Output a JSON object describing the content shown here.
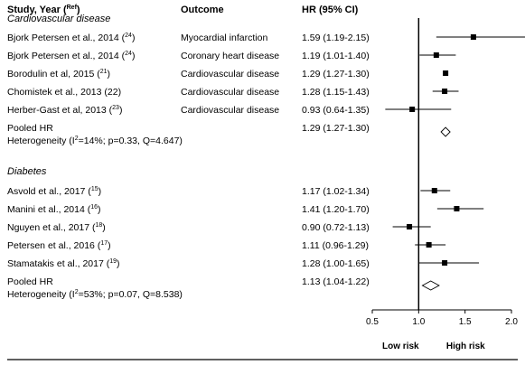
{
  "header": {
    "study_label": "Study, Year (",
    "study_sup": "Ref",
    "study_close": ")",
    "outcome": "Outcome",
    "hr": "HR (95% CI)"
  },
  "sections": [
    {
      "title": "Cardiovascular disease",
      "studies": [
        {
          "study": "Bjork Petersen et al., 2014 (",
          "sup": "24",
          "close": ")",
          "outcome": "Myocardial infarction",
          "hr_text": "1.59 (1.19-2.15)"
        },
        {
          "study": "Bjork Petersen et al., 2014 (",
          "sup": "24",
          "close": ")",
          "outcome": "Coronary heart disease",
          "hr_text": "1.19 (1.01-1.40)"
        },
        {
          "study": "Borodulin et al, 2015 (",
          "sup": "21",
          "close": ")",
          "outcome": "Cardiovascular disease",
          "hr_text": "1.29 (1.27-1.30)"
        },
        {
          "study": "Chomistek et al., 2013 (22)",
          "sup": "",
          "close": "",
          "outcome": "Cardiovascular disease",
          "hr_text": "1.28 (1.15-1.43)"
        },
        {
          "study": "Herber-Gast et al, 2013 (",
          "sup": "23",
          "close": ")",
          "outcome": "Cardiovascular disease",
          "hr_text": "0.93 (0.64-1.35)"
        }
      ],
      "pooled": {
        "label": "Pooled HR",
        "hr_text": "1.29 (1.27-1.30)",
        "heterogeneity_pre": "Heterogeneity (I",
        "heterogeneity_sup": "2",
        "heterogeneity_post": "=14%; p=0.33, Q=4.647)"
      }
    },
    {
      "title": "Diabetes",
      "studies": [
        {
          "study": "Asvold et al., 2017 (",
          "sup": "15",
          "close": ")",
          "outcome": "",
          "hr_text": "1.17 (1.02-1.34)"
        },
        {
          "study": "Manini et al., 2014 (",
          "sup": "16",
          "close": ")",
          "outcome": "",
          "hr_text": "1.41 (1.20-1.70)"
        },
        {
          "study": "Nguyen et al., 2017 (",
          "sup": "18",
          "close": ")",
          "outcome": "",
          "hr_text": "0.90 (0.72-1.13)"
        },
        {
          "study": "Petersen et al., 2016 (",
          "sup": "17",
          "close": ")",
          "outcome": "",
          "hr_text": "1.11 (0.96-1.29)"
        },
        {
          "study": "Stamatakis et al., 2017 (",
          "sup": "19",
          "close": ")",
          "outcome": "",
          "hr_text": "1.28 (1.00-1.65)"
        }
      ],
      "pooled": {
        "label": "Pooled HR",
        "hr_text": "1.13 (1.04-1.22)",
        "heterogeneity_pre": "Heterogeneity (I",
        "heterogeneity_sup": "2",
        "heterogeneity_post": "=53%; p=0.07, Q=8.538)"
      }
    }
  ],
  "axis": {
    "ticks": [
      "0.5",
      "1.0",
      "1.5",
      "2.0"
    ],
    "low_label": "Low risk",
    "high_label": "High risk"
  },
  "chart_data": {
    "type": "scatter",
    "subtype": "forest-plot",
    "xlim": [
      0.5,
      2.0
    ],
    "xticks": [
      0.5,
      1.0,
      1.5,
      2.0
    ],
    "reference_line": 1.0,
    "grid": false,
    "series": [
      {
        "name": "Cardiovascular disease",
        "points": [
          {
            "hr": 1.59,
            "lo": 1.19,
            "hi": 2.15
          },
          {
            "hr": 1.19,
            "lo": 1.01,
            "hi": 1.4
          },
          {
            "hr": 1.29,
            "lo": 1.27,
            "hi": 1.3
          },
          {
            "hr": 1.28,
            "lo": 1.15,
            "hi": 1.43
          },
          {
            "hr": 0.93,
            "lo": 0.64,
            "hi": 1.35
          }
        ],
        "pooled": {
          "hr": 1.29,
          "lo": 1.27,
          "hi": 1.3
        }
      },
      {
        "name": "Diabetes",
        "points": [
          {
            "hr": 1.17,
            "lo": 1.02,
            "hi": 1.34
          },
          {
            "hr": 1.41,
            "lo": 1.2,
            "hi": 1.7
          },
          {
            "hr": 0.9,
            "lo": 0.72,
            "hi": 1.13
          },
          {
            "hr": 1.11,
            "lo": 0.96,
            "hi": 1.29
          },
          {
            "hr": 1.28,
            "lo": 1.0,
            "hi": 1.65
          }
        ],
        "pooled": {
          "hr": 1.13,
          "lo": 1.04,
          "hi": 1.22
        }
      }
    ]
  }
}
